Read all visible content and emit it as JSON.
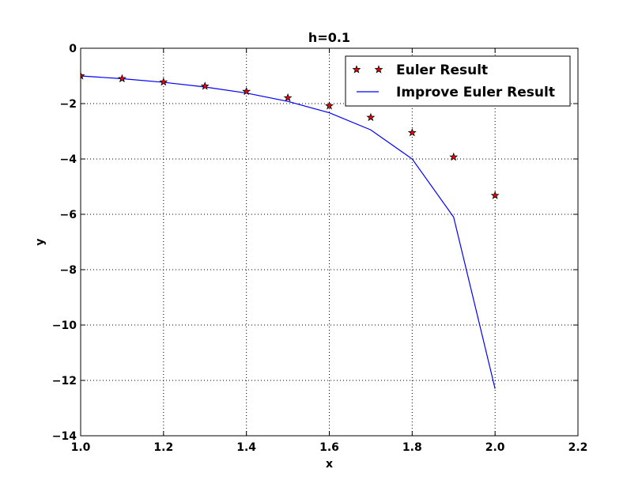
{
  "chart_data": {
    "type": "line",
    "title": "h=0.1",
    "xlabel": "x",
    "ylabel": "y",
    "xlim": [
      1.0,
      2.2
    ],
    "ylim": [
      -14,
      0
    ],
    "x_ticks": [
      "1.0",
      "1.2",
      "1.4",
      "1.6",
      "1.8",
      "2.0",
      "2.2"
    ],
    "y_ticks": [
      "0",
      "−2",
      "−4",
      "−6",
      "−8",
      "−10",
      "−12",
      "−14"
    ],
    "grid": true,
    "legend_position": "top-right",
    "series": [
      {
        "name": "Euler Result",
        "style": "markers",
        "marker": "star",
        "color": "#ff0000",
        "x": [
          1.0,
          1.1,
          1.2,
          1.3,
          1.4,
          1.5,
          1.6,
          1.7,
          1.8,
          1.9,
          2.0
        ],
        "y": [
          -1.0,
          -1.1,
          -1.22,
          -1.37,
          -1.56,
          -1.79,
          -2.08,
          -2.5,
          -3.05,
          -3.93,
          -5.32
        ]
      },
      {
        "name": "Improve Euler Result",
        "style": "line",
        "color": "#0000ff",
        "x": [
          1.0,
          1.1,
          1.2,
          1.3,
          1.4,
          1.5,
          1.6,
          1.7,
          1.8,
          1.9,
          2.0
        ],
        "y": [
          -1.0,
          -1.1,
          -1.23,
          -1.4,
          -1.62,
          -1.92,
          -2.33,
          -2.95,
          -4.0,
          -6.1,
          -12.3
        ]
      }
    ]
  }
}
